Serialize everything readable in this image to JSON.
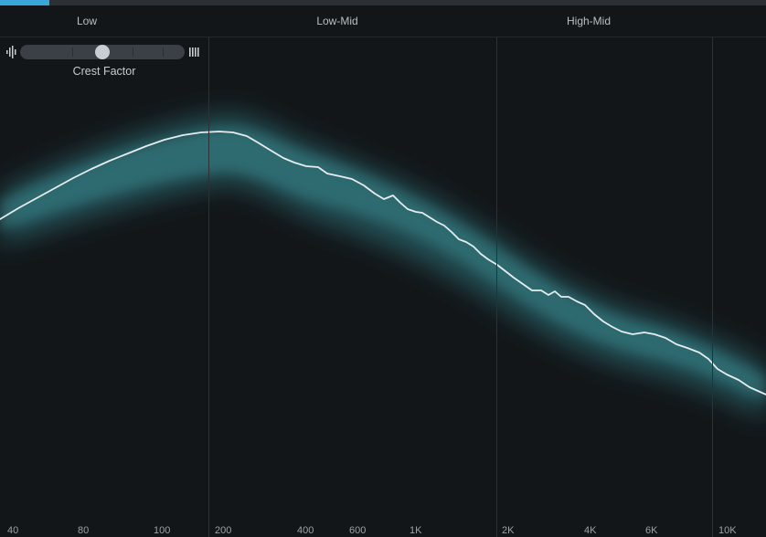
{
  "progress": {
    "accent_color": "#39a7d9"
  },
  "bands": [
    {
      "label": "Low"
    },
    {
      "label": "Low-Mid"
    },
    {
      "label": "High-Mid"
    }
  ],
  "crest_factor": {
    "label": "Crest Factor",
    "left_icon": "transient-icon",
    "right_icon": "bars-icon",
    "value": 0.5
  },
  "freq_labels": [
    "40",
    "80",
    "100",
    "200",
    "400",
    "600",
    "1K",
    "2K",
    "4K",
    "6K",
    "10K"
  ],
  "colors": {
    "background": "#131619",
    "curve": "#e6ecef",
    "band_fill": "#2f7f86"
  }
}
